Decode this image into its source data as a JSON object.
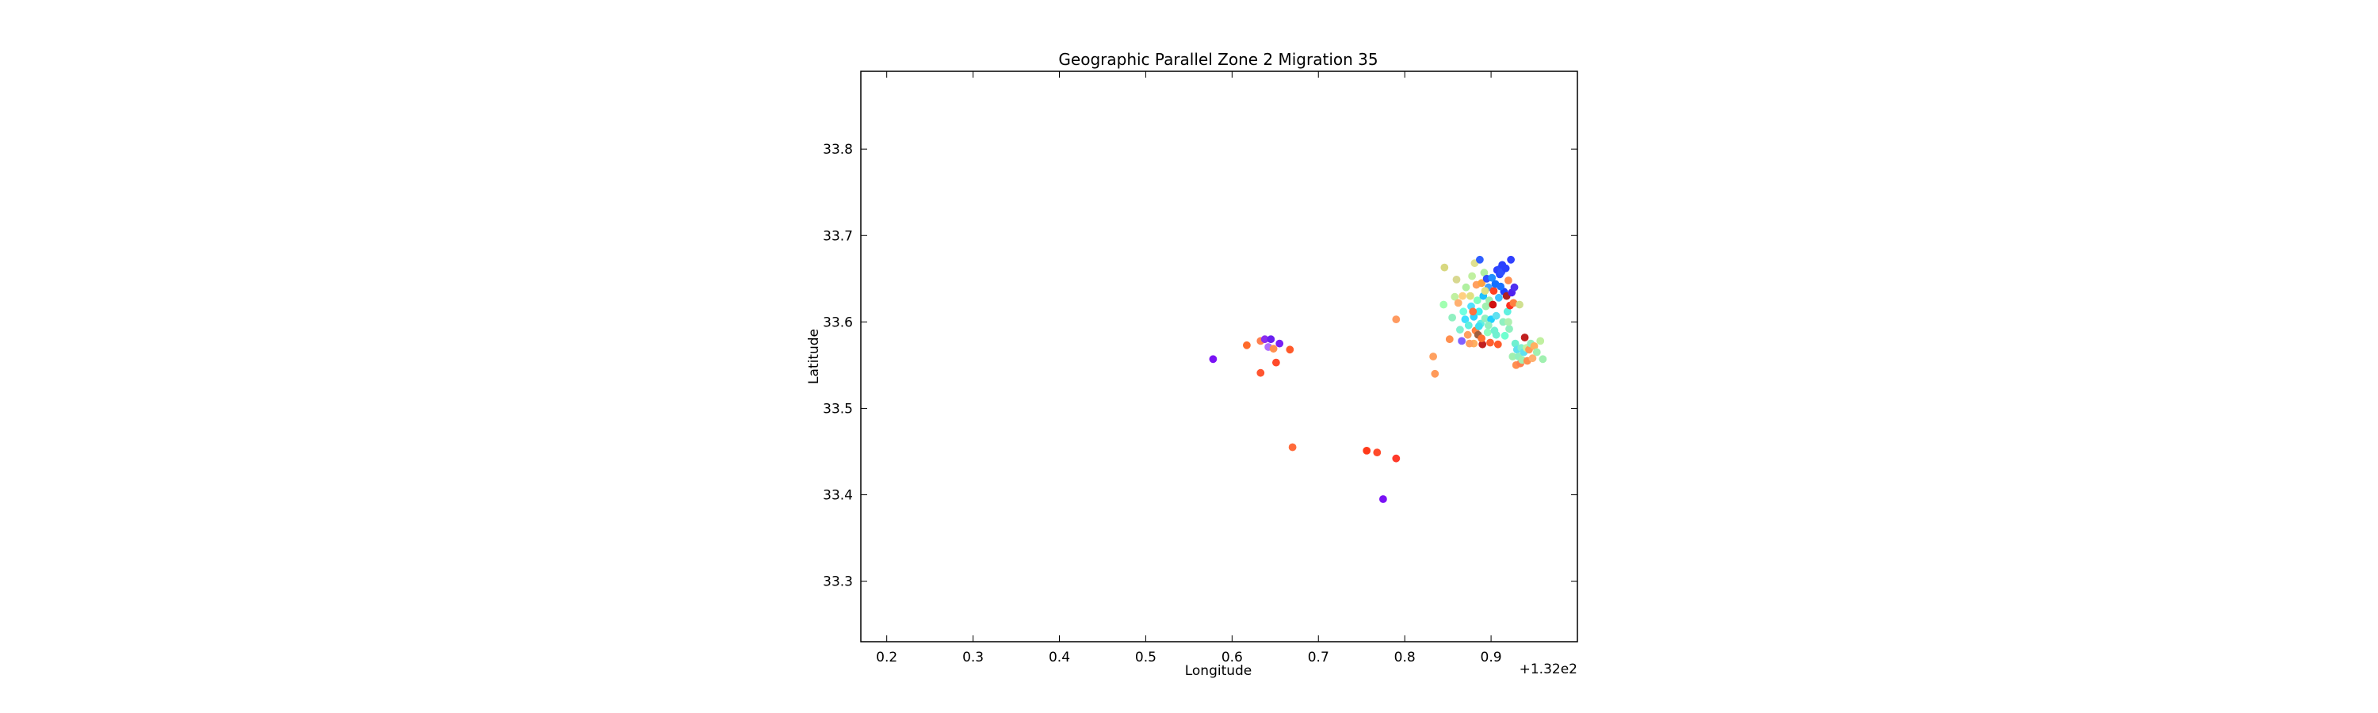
{
  "chart_data": {
    "type": "scatter",
    "title": "Geographic Parallel Zone 2 Migration 35",
    "xlabel": "Longitude",
    "ylabel": "Latitude",
    "x_offset_label": "+1.32e2",
    "xlim": [
      132.17,
      133.0
    ],
    "ylim": [
      33.23,
      33.89
    ],
    "x_ticks": [
      132.2,
      132.3,
      132.4,
      132.5,
      132.6,
      132.7,
      132.8,
      132.9
    ],
    "x_tick_labels": [
      "0.2",
      "0.3",
      "0.4",
      "0.5",
      "0.6",
      "0.7",
      "0.8",
      "0.9"
    ],
    "y_ticks": [
      33.3,
      33.4,
      33.5,
      33.6,
      33.7,
      33.8
    ],
    "y_tick_labels": [
      "33.3",
      "33.4",
      "33.5",
      "33.6",
      "33.7",
      "33.8"
    ],
    "grid": false,
    "legend": "none",
    "colormap": "jet",
    "points": [
      {
        "x": 132.578,
        "y": 33.557,
        "color": "#7a12f5"
      },
      {
        "x": 132.617,
        "y": 33.573,
        "color": "#ff6a2a"
      },
      {
        "x": 132.633,
        "y": 33.578,
        "color": "#ff8050"
      },
      {
        "x": 132.638,
        "y": 33.58,
        "color": "#8a2cf0"
      },
      {
        "x": 132.642,
        "y": 33.571,
        "color": "#b070ff"
      },
      {
        "x": 132.645,
        "y": 33.58,
        "color": "#6a20f0"
      },
      {
        "x": 132.648,
        "y": 33.569,
        "color": "#ff9050"
      },
      {
        "x": 132.651,
        "y": 33.553,
        "color": "#ff4a2a"
      },
      {
        "x": 132.655,
        "y": 33.575,
        "color": "#7a20f5"
      },
      {
        "x": 132.667,
        "y": 33.568,
        "color": "#ff5a2a"
      },
      {
        "x": 132.633,
        "y": 33.541,
        "color": "#ff5530"
      },
      {
        "x": 132.67,
        "y": 33.455,
        "color": "#ff6a3a"
      },
      {
        "x": 132.756,
        "y": 33.451,
        "color": "#ff3a1a"
      },
      {
        "x": 132.768,
        "y": 33.449,
        "color": "#ff4a2a"
      },
      {
        "x": 132.79,
        "y": 33.442,
        "color": "#ff3a2a"
      },
      {
        "x": 132.775,
        "y": 33.395,
        "color": "#7a12f5"
      },
      {
        "x": 132.79,
        "y": 33.603,
        "color": "#ff9a60"
      },
      {
        "x": 132.833,
        "y": 33.56,
        "color": "#ffa060"
      },
      {
        "x": 132.835,
        "y": 33.54,
        "color": "#ff9a5a"
      },
      {
        "x": 132.846,
        "y": 33.663,
        "color": "#d8d880"
      },
      {
        "x": 132.845,
        "y": 33.62,
        "color": "#a0ffb0"
      },
      {
        "x": 132.852,
        "y": 33.58,
        "color": "#ff9050"
      },
      {
        "x": 132.855,
        "y": 33.605,
        "color": "#90f0c0"
      },
      {
        "x": 132.858,
        "y": 33.629,
        "color": "#c0f0a0"
      },
      {
        "x": 132.86,
        "y": 33.649,
        "color": "#d8d890"
      },
      {
        "x": 132.862,
        "y": 33.622,
        "color": "#ffb070"
      },
      {
        "x": 132.864,
        "y": 33.591,
        "color": "#80f0d0"
      },
      {
        "x": 132.866,
        "y": 33.578,
        "color": "#8060ff"
      },
      {
        "x": 132.868,
        "y": 33.612,
        "color": "#70ffe0"
      },
      {
        "x": 132.87,
        "y": 33.603,
        "color": "#40e0ff"
      },
      {
        "x": 132.871,
        "y": 33.64,
        "color": "#b0f0a0"
      },
      {
        "x": 132.873,
        "y": 33.585,
        "color": "#ffa060"
      },
      {
        "x": 132.874,
        "y": 33.596,
        "color": "#60f0e0"
      },
      {
        "x": 132.876,
        "y": 33.63,
        "color": "#e0e080"
      },
      {
        "x": 132.877,
        "y": 33.618,
        "color": "#50e0ff"
      },
      {
        "x": 132.878,
        "y": 33.653,
        "color": "#c0f0a0"
      },
      {
        "x": 132.88,
        "y": 33.575,
        "color": "#ffb060"
      },
      {
        "x": 132.88,
        "y": 33.606,
        "color": "#30d0ff"
      },
      {
        "x": 132.881,
        "y": 33.668,
        "color": "#e0e090"
      },
      {
        "x": 132.882,
        "y": 33.59,
        "color": "#ff8040"
      },
      {
        "x": 132.883,
        "y": 33.643,
        "color": "#ffa060"
      },
      {
        "x": 132.884,
        "y": 33.625,
        "color": "#80ffc0"
      },
      {
        "x": 132.885,
        "y": 33.585,
        "color": "#a06040"
      },
      {
        "x": 132.886,
        "y": 33.612,
        "color": "#40f0f0"
      },
      {
        "x": 132.887,
        "y": 33.672,
        "color": "#3060ff"
      },
      {
        "x": 132.888,
        "y": 33.598,
        "color": "#60f0e0"
      },
      {
        "x": 132.889,
        "y": 33.645,
        "color": "#ffa040"
      },
      {
        "x": 132.89,
        "y": 33.574,
        "color": "#c02020"
      },
      {
        "x": 132.891,
        "y": 33.63,
        "color": "#20c0ff"
      },
      {
        "x": 132.892,
        "y": 33.657,
        "color": "#b0f0a0"
      },
      {
        "x": 132.893,
        "y": 33.604,
        "color": "#90f0c0"
      },
      {
        "x": 132.894,
        "y": 33.618,
        "color": "#a0f0b0"
      },
      {
        "x": 132.895,
        "y": 33.65,
        "color": "#3050ff"
      },
      {
        "x": 132.896,
        "y": 33.588,
        "color": "#90ffc0"
      },
      {
        "x": 132.897,
        "y": 33.64,
        "color": "#40a0ff"
      },
      {
        "x": 132.898,
        "y": 33.625,
        "color": "#a0f0b0"
      },
      {
        "x": 132.899,
        "y": 33.576,
        "color": "#ff6030"
      },
      {
        "x": 132.9,
        "y": 33.603,
        "color": "#20d0ff"
      },
      {
        "x": 132.901,
        "y": 33.651,
        "color": "#2090ff"
      },
      {
        "x": 132.902,
        "y": 33.62,
        "color": "#d01010"
      },
      {
        "x": 132.903,
        "y": 33.636,
        "color": "#ff4020"
      },
      {
        "x": 132.904,
        "y": 33.59,
        "color": "#70f0d0"
      },
      {
        "x": 132.905,
        "y": 33.644,
        "color": "#1070ff"
      },
      {
        "x": 132.906,
        "y": 33.607,
        "color": "#60e0f0"
      },
      {
        "x": 132.907,
        "y": 33.66,
        "color": "#3040ff"
      },
      {
        "x": 132.908,
        "y": 33.574,
        "color": "#ff5a2a"
      },
      {
        "x": 132.909,
        "y": 33.628,
        "color": "#40c0ff"
      },
      {
        "x": 132.91,
        "y": 33.655,
        "color": "#2a4cff"
      },
      {
        "x": 132.911,
        "y": 33.662,
        "color": "#2a4cff"
      },
      {
        "x": 132.912,
        "y": 33.658,
        "color": "#3050ff"
      },
      {
        "x": 132.913,
        "y": 33.666,
        "color": "#2a40ff"
      },
      {
        "x": 132.914,
        "y": 33.6,
        "color": "#90f0c0"
      },
      {
        "x": 132.915,
        "y": 33.635,
        "color": "#2040ff"
      },
      {
        "x": 132.916,
        "y": 33.584,
        "color": "#70ffd0"
      },
      {
        "x": 132.917,
        "y": 33.662,
        "color": "#2a40ff"
      },
      {
        "x": 132.918,
        "y": 33.63,
        "color": "#b02020"
      },
      {
        "x": 132.919,
        "y": 33.612,
        "color": "#60f0e0"
      },
      {
        "x": 132.92,
        "y": 33.648,
        "color": "#ff9050"
      },
      {
        "x": 132.921,
        "y": 33.592,
        "color": "#90f0c0"
      },
      {
        "x": 132.922,
        "y": 33.619,
        "color": "#ff3020"
      },
      {
        "x": 132.923,
        "y": 33.672,
        "color": "#3040ff"
      },
      {
        "x": 132.924,
        "y": 33.634,
        "color": "#5020f0"
      },
      {
        "x": 132.925,
        "y": 33.56,
        "color": "#a0f0b0"
      },
      {
        "x": 132.926,
        "y": 33.622,
        "color": "#ff8040"
      },
      {
        "x": 132.927,
        "y": 33.64,
        "color": "#5030f0"
      },
      {
        "x": 132.928,
        "y": 33.575,
        "color": "#70f0d0"
      },
      {
        "x": 132.929,
        "y": 33.55,
        "color": "#ff9050"
      },
      {
        "x": 132.93,
        "y": 33.568,
        "color": "#60e0f0"
      },
      {
        "x": 132.932,
        "y": 33.56,
        "color": "#90f0c0"
      },
      {
        "x": 132.933,
        "y": 33.62,
        "color": "#d0e090"
      },
      {
        "x": 132.934,
        "y": 33.552,
        "color": "#ff8050"
      },
      {
        "x": 132.935,
        "y": 33.57,
        "color": "#80f0d0"
      },
      {
        "x": 132.936,
        "y": 33.556,
        "color": "#a0f0b0"
      },
      {
        "x": 132.938,
        "y": 33.565,
        "color": "#60e0f0"
      },
      {
        "x": 132.939,
        "y": 33.582,
        "color": "#c02020"
      },
      {
        "x": 132.941,
        "y": 33.57,
        "color": "#c0f0a0"
      },
      {
        "x": 132.942,
        "y": 33.555,
        "color": "#ff9050"
      },
      {
        "x": 132.944,
        "y": 33.568,
        "color": "#ff9a5a"
      },
      {
        "x": 132.946,
        "y": 33.575,
        "color": "#90f0c0"
      },
      {
        "x": 132.948,
        "y": 33.558,
        "color": "#ffb070"
      },
      {
        "x": 132.95,
        "y": 33.572,
        "color": "#ffb060"
      },
      {
        "x": 132.953,
        "y": 33.565,
        "color": "#a0f0b0"
      },
      {
        "x": 132.957,
        "y": 33.578,
        "color": "#c0f0a0"
      },
      {
        "x": 132.96,
        "y": 33.557,
        "color": "#a0f0b0"
      },
      {
        "x": 132.867,
        "y": 33.63,
        "color": "#ffd080"
      },
      {
        "x": 132.879,
        "y": 33.612,
        "color": "#ff7040"
      },
      {
        "x": 132.897,
        "y": 33.596,
        "color": "#90f0c0"
      },
      {
        "x": 132.889,
        "y": 33.581,
        "color": "#ff7030"
      },
      {
        "x": 132.875,
        "y": 33.575,
        "color": "#ffa060"
      },
      {
        "x": 132.906,
        "y": 33.585,
        "color": "#70f0d0"
      },
      {
        "x": 132.893,
        "y": 33.636,
        "color": "#e0e080"
      },
      {
        "x": 132.92,
        "y": 33.6,
        "color": "#b0f0b0"
      },
      {
        "x": 132.911,
        "y": 33.641,
        "color": "#1870ff"
      },
      {
        "x": 132.886,
        "y": 33.595,
        "color": "#40e0f0"
      }
    ]
  }
}
